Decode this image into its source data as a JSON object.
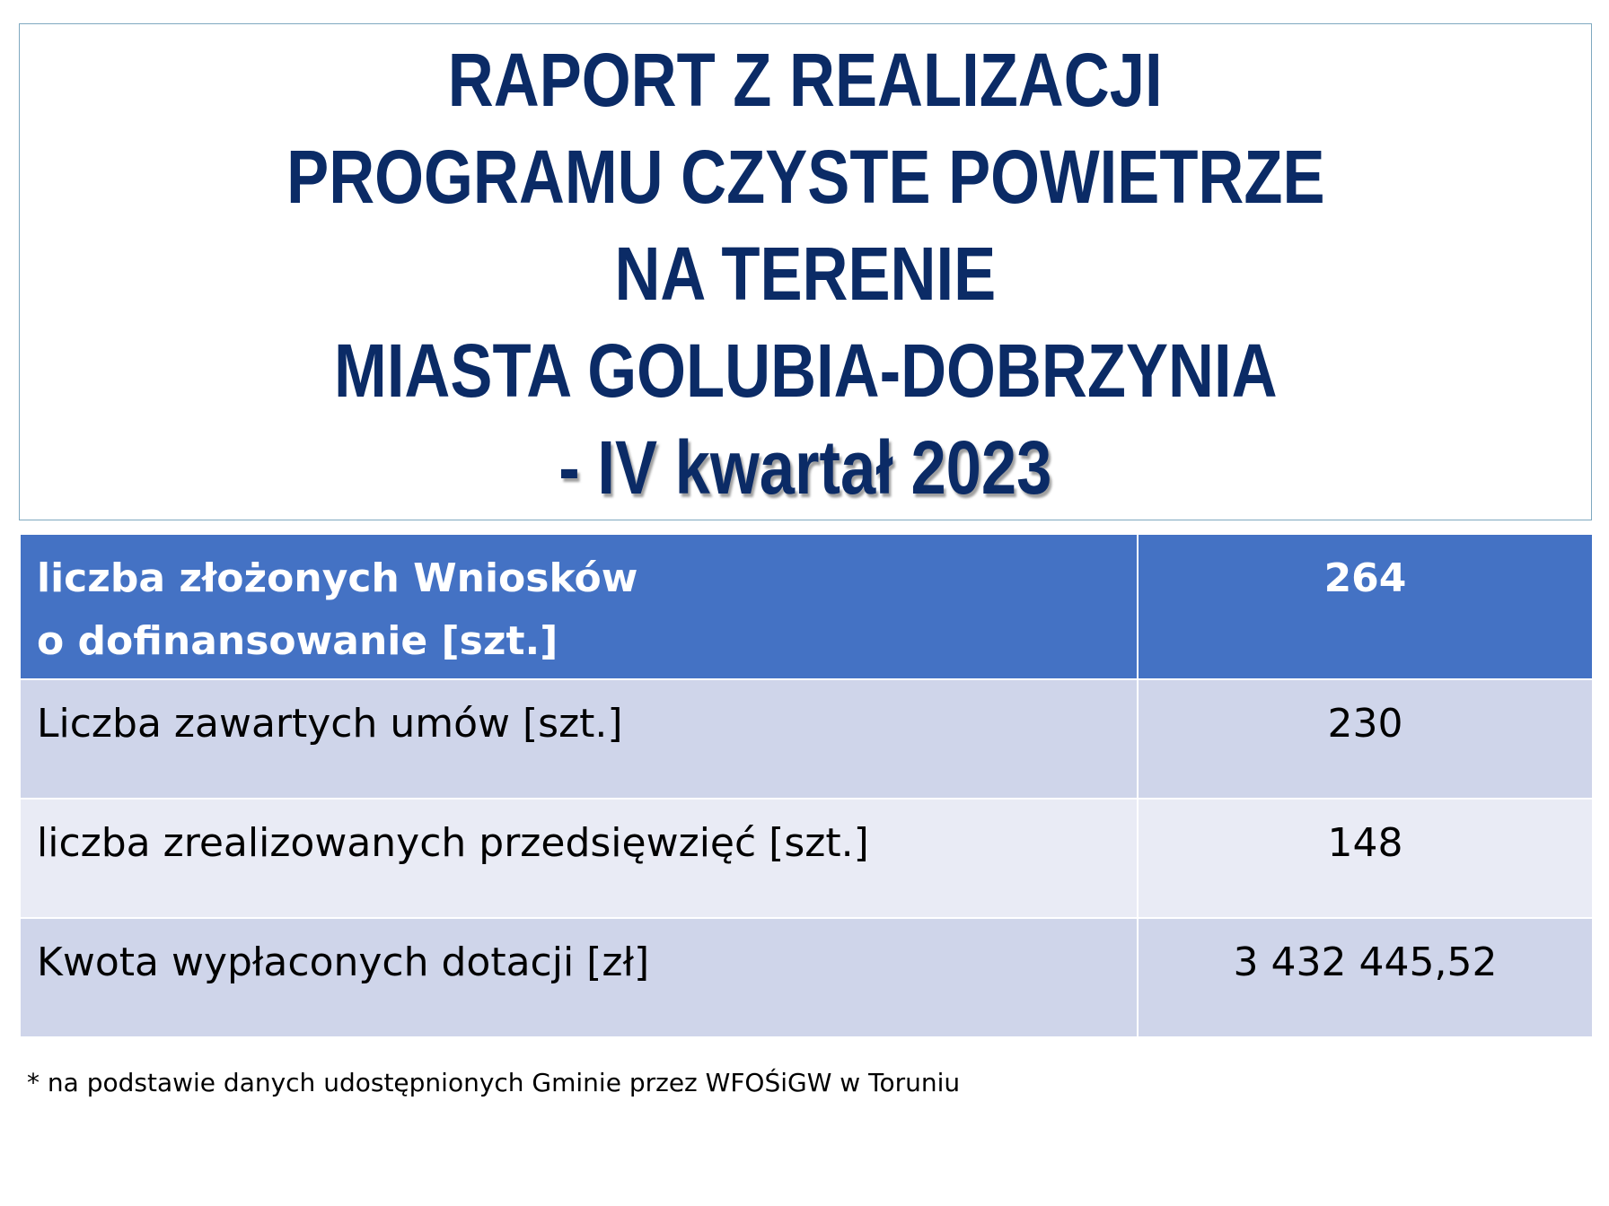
{
  "title": {
    "lines": [
      "RAPORT Z REALIZACJI",
      "PROGRAMU CZYSTE POWIETRZE",
      "NA TERENIE",
      "MIASTA GOLUBIA-DOBRZYNIA",
      "- IV kwartał 2023"
    ]
  },
  "table": {
    "rows": [
      {
        "label_lines": [
          "liczba złożonych Wniosków",
          "o dofinansowanie [szt.]"
        ],
        "value": "264"
      },
      {
        "label_lines": [
          "Liczba zawartych umów [szt.]"
        ],
        "value": "230"
      },
      {
        "label_lines": [
          "liczba zrealizowanych przedsięwzięć [szt.]"
        ],
        "value": "148"
      },
      {
        "label_lines": [
          "Kwota wypłaconych dotacji [zł]"
        ],
        "value": "3 432 445,52"
      }
    ]
  },
  "footnote": "* na podstawie danych udostępnionych Gminie przez WFOŚiGW w Toruniu",
  "colors": {
    "title_text": "#0b2b66",
    "header_row": "#4472c4",
    "row_dark": "#cfd5ea",
    "row_light": "#e9ebf5"
  }
}
